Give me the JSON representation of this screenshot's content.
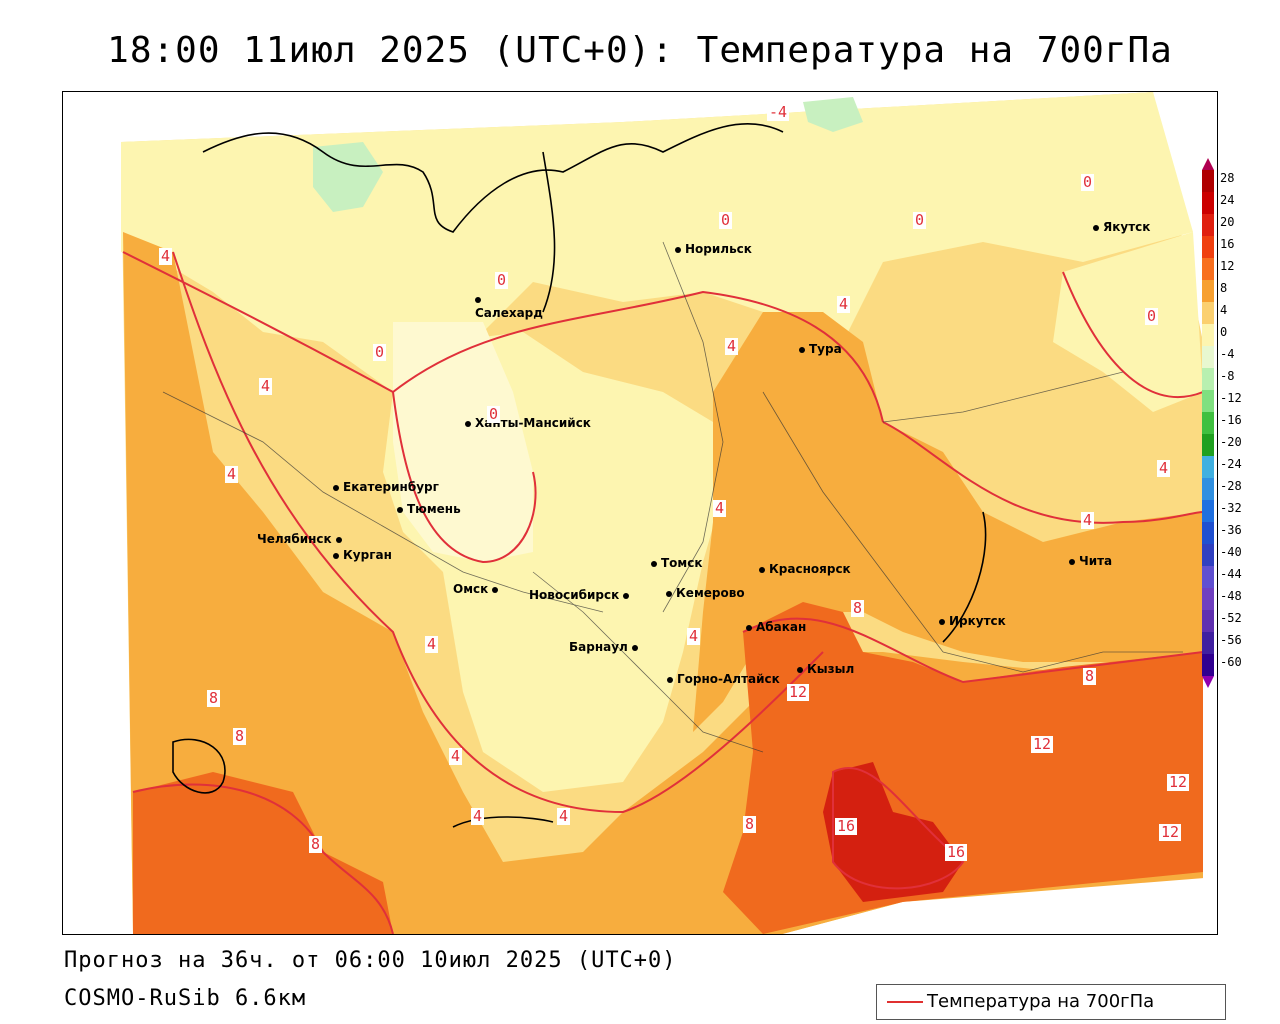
{
  "header": {
    "title": "18:00 11июл 2025 (UTC+0): Температура на 700гПа"
  },
  "footer": {
    "forecast": "Прогноз на 36ч. от 06:00 10июл 2025 (UTC+0)",
    "model": "COSMO-RuSib 6.6км"
  },
  "legend": {
    "label": "Температура на 700гПа",
    "line_color": "#e03030"
  },
  "colors": {
    "t_0_4": "#fdf5b0",
    "t_4_8": "#fbdb82",
    "t_8_12": "#f7ad3e",
    "t_12_16": "#f06a1e",
    "t_16_20": "#d42010",
    "t_neg": "#c8f0c0",
    "contour": "#e0303a",
    "coast": "#000000"
  },
  "color_scale": {
    "ticks": [
      "28",
      "24",
      "20",
      "16",
      "12",
      "8",
      "4",
      "0",
      "-4",
      "-8",
      "-12",
      "-16",
      "-20",
      "-24",
      "-28",
      "-32",
      "-36",
      "-40",
      "-44",
      "-48",
      "-52",
      "-56",
      "-60"
    ],
    "colors": [
      "#b00000",
      "#cc0000",
      "#e02010",
      "#f04010",
      "#f87020",
      "#f7a030",
      "#fbd070",
      "#fdf5b0",
      "#e8f8d0",
      "#b8f0b0",
      "#80e080",
      "#40c040",
      "#20a020",
      "#40b0e0",
      "#3090e0",
      "#2070e0",
      "#2050d0",
      "#3040c0",
      "#6050d0",
      "#7040c0",
      "#6030b0",
      "#4020a0",
      "#300090"
    ]
  },
  "cities": [
    {
      "name": "Норильск"
    },
    {
      "name": "Якутск"
    },
    {
      "name": "Салехард"
    },
    {
      "name": "Тура"
    },
    {
      "name": "Ханты-Мансийск"
    },
    {
      "name": "Екатеринбург"
    },
    {
      "name": "Тюмень"
    },
    {
      "name": "Челябинск"
    },
    {
      "name": "Курган"
    },
    {
      "name": "Омск"
    },
    {
      "name": "Томск"
    },
    {
      "name": "Новосибирск"
    },
    {
      "name": "Кемерово"
    },
    {
      "name": "Красноярск"
    },
    {
      "name": "Барнаул"
    },
    {
      "name": "Абакан"
    },
    {
      "name": "Иркутск"
    },
    {
      "name": "Чита"
    },
    {
      "name": "Горно-Алтайск"
    },
    {
      "name": "Кызыл"
    }
  ],
  "contour_labels": [
    "-4",
    "0",
    "0",
    "0",
    "0",
    "0",
    "0",
    "0",
    "4",
    "4",
    "4",
    "4",
    "4",
    "4",
    "4",
    "4",
    "4",
    "4",
    "4",
    "4",
    "4",
    "8",
    "8",
    "8",
    "8",
    "8",
    "8",
    "12",
    "12",
    "12",
    "12",
    "16",
    "16"
  ]
}
